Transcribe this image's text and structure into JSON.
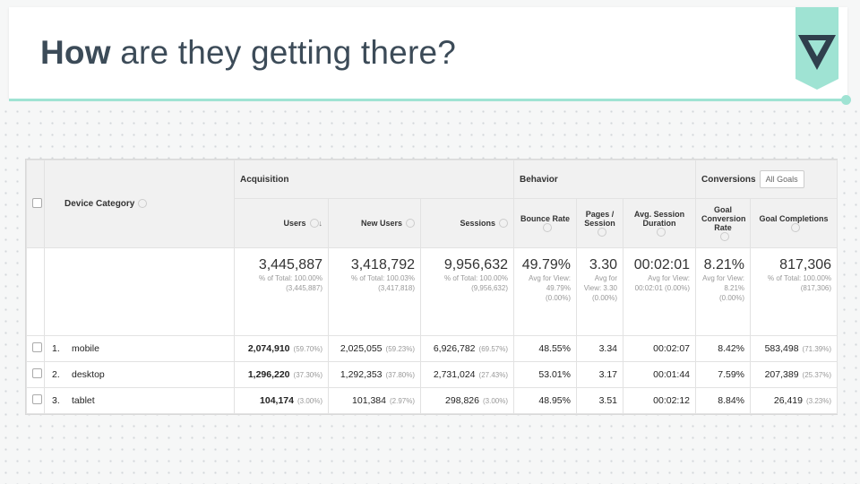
{
  "header": {
    "title_bold": "How",
    "title_rest": "are they getting there?"
  },
  "table": {
    "groups": [
      "Acquisition",
      "Behavior",
      "Conversions"
    ],
    "goal_selector": "All Goals",
    "columns": [
      "Device Category",
      "Users",
      "New Users",
      "Sessions",
      "Bounce Rate",
      "Pages / Session",
      "Avg. Session Duration",
      "Goal Conversion Rate",
      "Goal Completions"
    ],
    "totals": [
      {
        "value": "3,445,887",
        "note": "% of Total: 100.00% (3,445,887)"
      },
      {
        "value": "3,418,792",
        "note": "% of Total: 100.03% (3,417,818)"
      },
      {
        "value": "9,956,632",
        "note": "% of Total: 100.00% (9,956,632)"
      },
      {
        "value": "49.79%",
        "note": "Avg for View: 49.79% (0.00%)"
      },
      {
        "value": "3.30",
        "note": "Avg for View: 3.30 (0.00%)"
      },
      {
        "value": "00:02:01",
        "note": "Avg for View: 00:02:01 (0.00%)"
      },
      {
        "value": "8.21%",
        "note": "Avg for View: 8.21% (0.00%)"
      },
      {
        "value": "817,306",
        "note": "% of Total: 100.00% (817,306)"
      }
    ],
    "rows": [
      {
        "index": "1.",
        "name": "mobile",
        "cells": [
          {
            "value": "2,074,910",
            "share": "(59.70%)"
          },
          {
            "value": "2,025,055",
            "share": "(59.23%)"
          },
          {
            "value": "6,926,782",
            "share": "(69.57%)"
          },
          {
            "value": "48.55%"
          },
          {
            "value": "3.34"
          },
          {
            "value": "00:02:07"
          },
          {
            "value": "8.42%"
          },
          {
            "value": "583,498",
            "share": "(71.39%)"
          }
        ]
      },
      {
        "index": "2.",
        "name": "desktop",
        "cells": [
          {
            "value": "1,296,220",
            "share": "(37.30%)"
          },
          {
            "value": "1,292,353",
            "share": "(37.80%)"
          },
          {
            "value": "2,731,024",
            "share": "(27.43%)"
          },
          {
            "value": "53.01%"
          },
          {
            "value": "3.17"
          },
          {
            "value": "00:01:44"
          },
          {
            "value": "7.59%"
          },
          {
            "value": "207,389",
            "share": "(25.37%)"
          }
        ]
      },
      {
        "index": "3.",
        "name": "tablet",
        "cells": [
          {
            "value": "104,174",
            "share": "(3.00%)"
          },
          {
            "value": "101,384",
            "share": "(2.97%)"
          },
          {
            "value": "298,826",
            "share": "(3.00%)"
          },
          {
            "value": "48.95%"
          },
          {
            "value": "3.51"
          },
          {
            "value": "00:02:12"
          },
          {
            "value": "8.84%"
          },
          {
            "value": "26,419",
            "share": "(3.23%)"
          }
        ]
      }
    ]
  }
}
